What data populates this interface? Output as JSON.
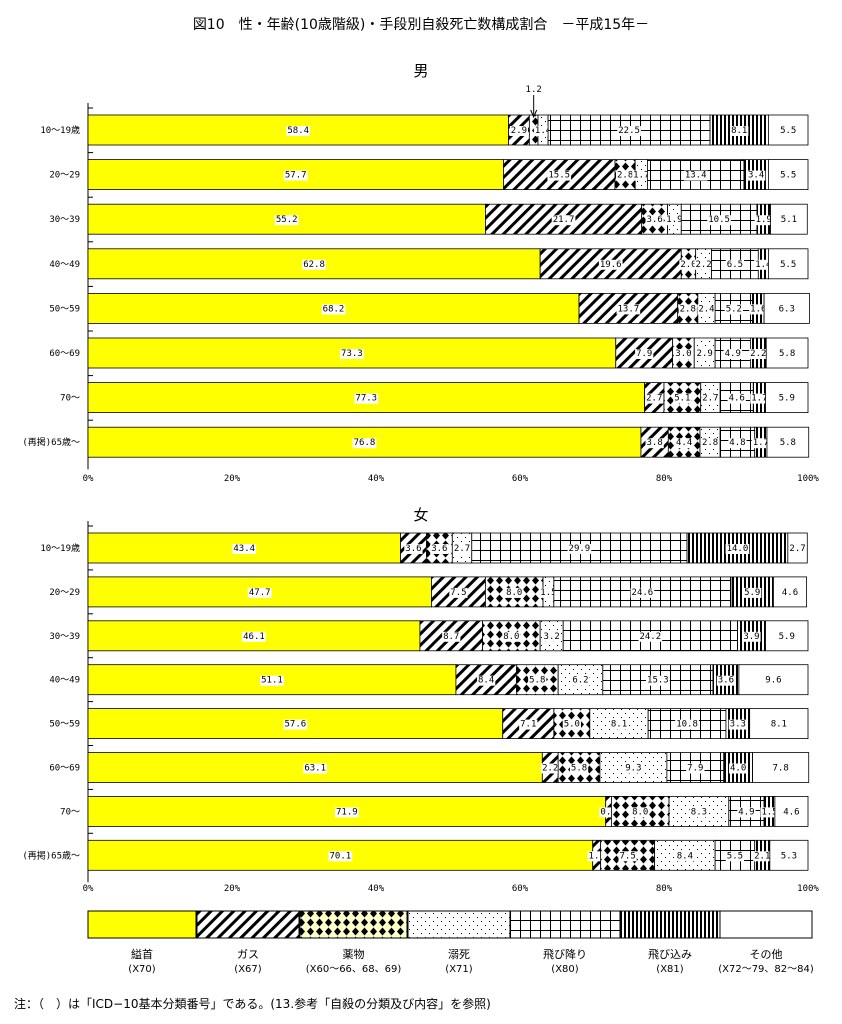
{
  "title": "図10　性・年齢(10歳階級)・手段別自殺死亡数構成割合　－平成15年－",
  "note": "注：（　）は「ICD−10基本分類番号」である。(13.参考「自殺の分類及び内容」を参照)",
  "chart_data": [
    {
      "type": "bar",
      "stacked": true,
      "orientation": "horizontal",
      "title": "男",
      "xlim": [
        0,
        100
      ],
      "xticks": [
        "0%",
        "20%",
        "40%",
        "60%",
        "80%",
        "100%"
      ],
      "categories": [
        "10～19歳",
        "20～29",
        "30～39",
        "40～49",
        "50～59",
        "60～69",
        "70～",
        "(再掲)65歳～"
      ],
      "annotation": "1.2",
      "series": [
        {
          "name": "縊首",
          "values": [
            58.4,
            57.7,
            55.2,
            62.8,
            68.2,
            73.3,
            77.3,
            76.8
          ]
        },
        {
          "name": "ガス",
          "values": [
            2.9,
            15.5,
            21.7,
            19.6,
            13.7,
            7.9,
            2.7,
            3.8
          ]
        },
        {
          "name": "薬物",
          "values": [
            1.2,
            2.8,
            3.6,
            2.0,
            2.8,
            3.0,
            5.1,
            4.4
          ]
        },
        {
          "name": "溺死",
          "values": [
            1.4,
            1.7,
            1.9,
            2.2,
            2.4,
            2.9,
            2.7,
            2.8
          ]
        },
        {
          "name": "飛び降り",
          "values": [
            22.5,
            13.4,
            10.5,
            6.5,
            5.2,
            4.9,
            4.6,
            4.8
          ]
        },
        {
          "name": "飛び込み",
          "values": [
            8.1,
            3.4,
            1.9,
            1.4,
            1.6,
            2.2,
            1.7,
            1.7
          ]
        },
        {
          "name": "その他",
          "values": [
            5.5,
            5.5,
            5.1,
            5.5,
            6.3,
            5.8,
            5.9,
            5.8
          ]
        }
      ]
    },
    {
      "type": "bar",
      "stacked": true,
      "orientation": "horizontal",
      "title": "女",
      "xlim": [
        0,
        100
      ],
      "xticks": [
        "0%",
        "20%",
        "40%",
        "60%",
        "80%",
        "100%"
      ],
      "categories": [
        "10～19歳",
        "20～29",
        "30～39",
        "40～49",
        "50～59",
        "60～69",
        "70～",
        "(再掲)65歳～"
      ],
      "series": [
        {
          "name": "縊首",
          "values": [
            43.4,
            47.7,
            46.1,
            51.1,
            57.6,
            63.1,
            71.9,
            70.1
          ]
        },
        {
          "name": "ガス",
          "values": [
            3.6,
            7.5,
            8.7,
            8.4,
            7.1,
            2.2,
            0.8,
            1.1
          ]
        },
        {
          "name": "薬物",
          "values": [
            3.6,
            8.0,
            8.0,
            5.8,
            5.0,
            5.8,
            8.0,
            7.5
          ]
        },
        {
          "name": "溺死",
          "values": [
            2.7,
            1.5,
            3.2,
            6.2,
            8.1,
            9.3,
            8.3,
            8.4
          ]
        },
        {
          "name": "飛び降り",
          "values": [
            29.9,
            24.6,
            24.2,
            15.3,
            10.8,
            7.9,
            4.9,
            5.5
          ]
        },
        {
          "name": "飛び込み",
          "values": [
            14.0,
            5.9,
            3.9,
            3.6,
            3.3,
            4.0,
            1.5,
            2.1
          ]
        },
        {
          "name": "その他",
          "values": [
            2.7,
            4.6,
            5.9,
            9.6,
            8.1,
            7.8,
            4.6,
            5.3
          ]
        }
      ]
    }
  ],
  "legend": [
    {
      "name": "縊首",
      "code": "(X70)"
    },
    {
      "name": "ガス",
      "code": "(X67)"
    },
    {
      "name": "薬物",
      "code": "(X60～66、68、69)"
    },
    {
      "name": "溺死",
      "code": "(X71)"
    },
    {
      "name": "飛び降り",
      "code": "(X80)"
    },
    {
      "name": "飛び込み",
      "code": "(X81)"
    },
    {
      "name": "その他",
      "code": "(X72～79、82～84)"
    }
  ]
}
